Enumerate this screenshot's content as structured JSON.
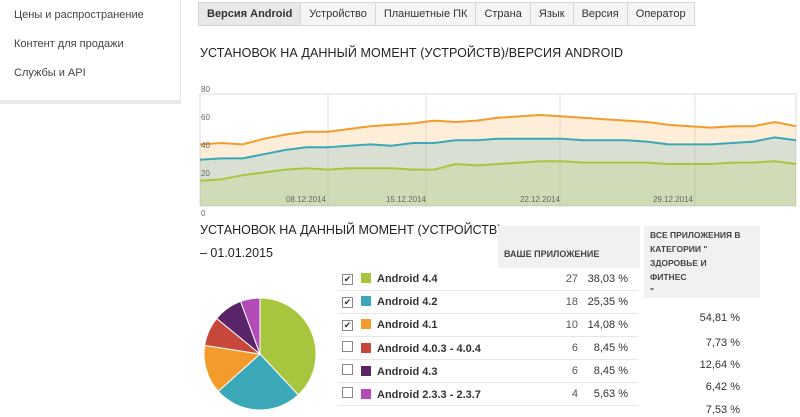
{
  "sidebar": {
    "items": [
      "Цены и распространение",
      "Контент для продажи",
      "Службы и API"
    ]
  },
  "tabs": [
    "Версия Android",
    "Устройство",
    "Планшетные ПК",
    "Страна",
    "Язык",
    "Версия",
    "Оператор"
  ],
  "active_tab": 0,
  "section1_title": "УСТАНОВОК НА ДАННЫЙ МОМЕНТ (УСТРОЙСТВ)/ВЕРСИЯ ANDROID",
  "chart_data": {
    "type": "area",
    "y_ticks": [
      "80",
      "60",
      "40",
      "20",
      "0"
    ],
    "x_ticks": [
      "08.12.2014",
      "15.12.2014",
      "22.12.2014",
      "29.12.2014"
    ],
    "ylim": [
      0,
      80
    ],
    "series": [
      {
        "color": "#f39c2b",
        "values": [
          44,
          45,
          44,
          48,
          51,
          53,
          53,
          55,
          57,
          58,
          59,
          61,
          60,
          61,
          63,
          64,
          65,
          64,
          63,
          62,
          61,
          60,
          58,
          57,
          56,
          57,
          57,
          60,
          57
        ]
      },
      {
        "color": "#3aa8b6",
        "values": [
          33,
          34,
          34,
          37,
          40,
          42,
          42,
          43,
          44,
          43,
          45,
          45,
          47,
          47,
          48,
          48,
          48,
          48,
          47,
          47,
          47,
          46,
          44,
          44,
          44,
          45,
          46,
          49,
          47
        ]
      },
      {
        "color": "#a8c63d",
        "values": [
          18,
          19,
          22,
          24,
          26,
          27,
          26,
          27,
          27,
          27,
          26,
          26,
          30,
          29,
          30,
          31,
          32,
          32,
          31,
          31,
          31,
          31,
          30,
          30,
          30,
          31,
          31,
          32,
          30
        ]
      }
    ]
  },
  "section2_title_l1": "УСТАНОВОК НА ДАННЫЙ МОМЕНТ (УСТРОЙСТВ)",
  "section2_title_l2": "– 01.01.2015",
  "col_app": "ВАШЕ ПРИЛОЖЕНИЕ",
  "col_category_lines": [
    "ВСЕ ПРИЛОЖЕНИЯ В",
    "КАТЕГОРИИ \"",
    "ЗДОРОВЬЕ И",
    "ФИТНЕС",
    "\""
  ],
  "versions": [
    {
      "name": "Android 4.4",
      "count": "27",
      "pct": "38,03 %",
      "cat": "54,81 %",
      "color": "#a8c63d",
      "checked": true
    },
    {
      "name": "Android 4.2",
      "count": "18",
      "pct": "25,35 %",
      "cat": "7,73 %",
      "color": "#3aa8b6",
      "checked": true
    },
    {
      "name": "Android 4.1",
      "count": "10",
      "pct": "14,08 %",
      "cat": "12,64 %",
      "color": "#f39c2b",
      "checked": true
    },
    {
      "name": "Android 4.0.3 - 4.0.4",
      "count": "6",
      "pct": "8,45 %",
      "cat": "6,42 %",
      "color": "#c7473d",
      "checked": false
    },
    {
      "name": "Android 4.3",
      "count": "6",
      "pct": "8,45 %",
      "cat": "7,53 %",
      "color": "#5a2468",
      "checked": false
    },
    {
      "name": "Android 2.3.3 - 2.3.7",
      "count": "4",
      "pct": "5,63 %",
      "cat": "",
      "color": "#b44ab8",
      "checked": false
    }
  ],
  "pie_values": [
    38.03,
    25.35,
    14.08,
    8.45,
    8.45,
    5.63
  ],
  "check_mark": "✔"
}
